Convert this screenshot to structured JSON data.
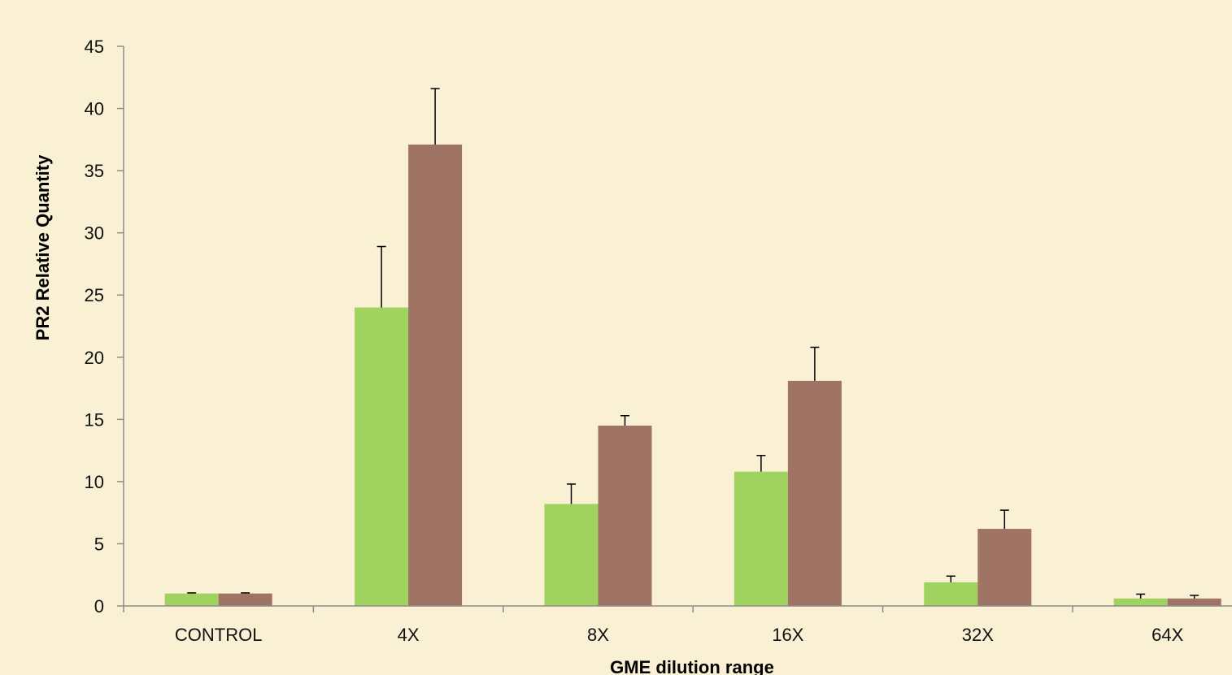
{
  "chart_data": {
    "type": "bar",
    "title": "",
    "xlabel": "GME dilution range",
    "ylabel": "PR2 Relative Quantity",
    "categories": [
      "CONTROL",
      "4X",
      "8X",
      "16X",
      "32X",
      "64X"
    ],
    "ylim": [
      0,
      45
    ],
    "yticks": [
      0,
      5,
      10,
      15,
      20,
      25,
      30,
      35,
      40,
      45
    ],
    "grid": false,
    "legend": "none",
    "series": [
      {
        "color": "#A0D25F",
        "values": [
          1.0,
          24.0,
          8.2,
          10.8,
          1.9,
          0.6
        ],
        "errors": [
          0.05,
          4.9,
          1.6,
          1.3,
          0.5,
          0.35
        ]
      },
      {
        "color": "#A07464",
        "values": [
          1.0,
          37.1,
          14.5,
          18.1,
          6.2,
          0.6
        ],
        "errors": [
          0.05,
          4.5,
          0.8,
          2.7,
          1.5,
          0.25
        ]
      }
    ]
  }
}
